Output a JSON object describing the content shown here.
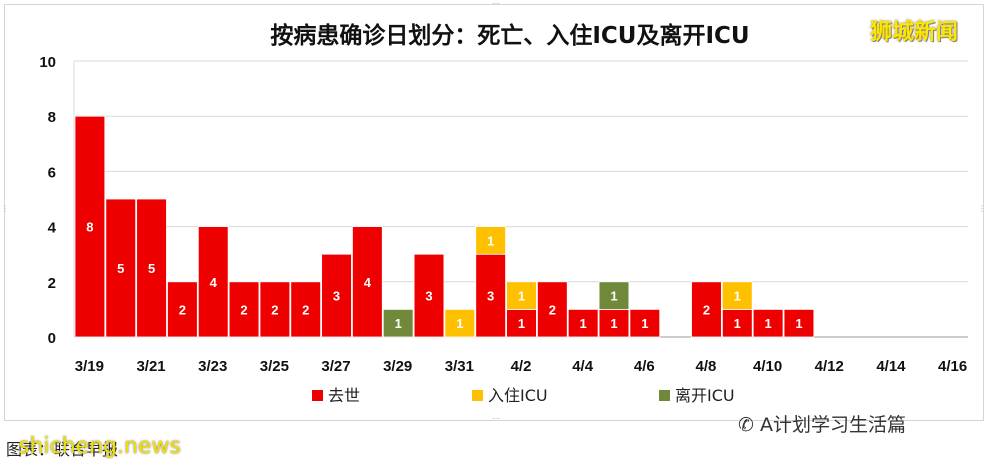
{
  "header": {
    "title": "按病患确诊日划分：死亡、入住ICU及离开ICU",
    "watermark": "狮城新闻"
  },
  "footer": {
    "credit": "图表：联合早报",
    "site": "shicheng.news",
    "wechat": "A计划学习生活篇"
  },
  "colors": {
    "died": "#ee0000",
    "icu_in": "#ffc000",
    "icu_out": "#70883a"
  },
  "chart_data": {
    "type": "bar",
    "stacked": true,
    "title": "按病患确诊日划分：死亡、入住ICU及离开ICU",
    "xlabel": "",
    "ylabel": "",
    "ylim": [
      0,
      10
    ],
    "yticks": [
      "0",
      "2",
      "4",
      "6",
      "8",
      "10"
    ],
    "x_tick_labels": [
      "3/19",
      "3/21",
      "3/23",
      "3/25",
      "3/27",
      "3/29",
      "3/31",
      "4/2",
      "4/4",
      "4/6",
      "4/8",
      "4/10",
      "4/12",
      "4/14",
      "4/16"
    ],
    "categories": [
      "3/19",
      "3/20",
      "3/21",
      "3/22",
      "3/23",
      "3/24",
      "3/25",
      "3/26",
      "3/27",
      "3/28",
      "3/29",
      "3/30",
      "3/31",
      "4/1",
      "4/2",
      "4/3",
      "4/4",
      "4/5",
      "4/6",
      "4/7",
      "4/8",
      "4/9",
      "4/10",
      "4/11",
      "4/12",
      "4/13",
      "4/14",
      "4/15",
      "4/16"
    ],
    "series": [
      {
        "name": "去世",
        "key": "died",
        "values": [
          8,
          5,
          5,
          2,
          4,
          2,
          2,
          2,
          3,
          4,
          0,
          3,
          0,
          3,
          1,
          2,
          1,
          1,
          1,
          0,
          2,
          1,
          1,
          1,
          0,
          0,
          0,
          0,
          0
        ]
      },
      {
        "name": "入住ICU",
        "key": "icu_in",
        "values": [
          0,
          0,
          0,
          0,
          0,
          0,
          0,
          0,
          0,
          0,
          0,
          0,
          1,
          1,
          1,
          0,
          0,
          0,
          0,
          0,
          0,
          1,
          0,
          0,
          0,
          0,
          0,
          0,
          0
        ]
      },
      {
        "name": "离开ICU",
        "key": "icu_out",
        "values": [
          0,
          0,
          0,
          0,
          0,
          0,
          0,
          0,
          0,
          0,
          1,
          0,
          0,
          0,
          0,
          0,
          0,
          1,
          0,
          0,
          0,
          0,
          0,
          0,
          0,
          0,
          0,
          0,
          0
        ]
      }
    ],
    "grid": true,
    "legend": "bottom"
  }
}
